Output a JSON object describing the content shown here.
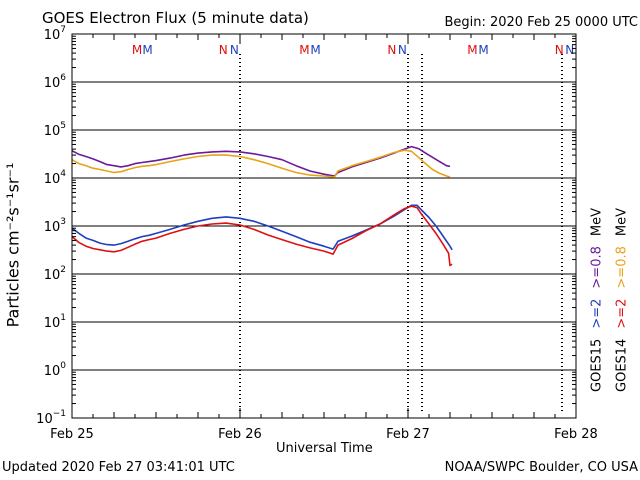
{
  "header": {
    "title": "GOES Electron Flux (5 minute data)",
    "begin": "Begin: 2020 Feb 25 0000 UTC"
  },
  "footer": {
    "updated": "Updated 2020 Feb 27 03:41:01 UTC",
    "credit": "NOAA/SWPC Boulder, CO USA"
  },
  "legend": {
    "goes15": {
      "name": "GOES15",
      "ge2": ">=2",
      "ge08": ">=0.8",
      "unit": "MeV"
    },
    "goes14": {
      "name": "GOES14",
      "ge2": ">=2",
      "ge08": ">=0.8",
      "unit": "MeV"
    }
  },
  "colors": {
    "goes15_ge2": "#1f3fbf",
    "goes15_ge08": "#6a1b9a",
    "goes14_ge2": "#e01010",
    "goes14_ge08": "#e8a317",
    "marker_m": "#e01010",
    "marker_n_red": "#e01010",
    "marker_n_blue": "#1f3fbf",
    "marker_m_blue": "#1f3fbf"
  },
  "chart_data": {
    "type": "line",
    "title": "GOES Electron Flux (5 minute data)",
    "xlabel": "Universal Time",
    "ylabel": "Particles cm⁻²s⁻¹sr⁻¹",
    "yscale": "log",
    "ylim": [
      0.1,
      10000000
    ],
    "xlim": [
      0,
      72
    ],
    "x_unit": "hours since 2020 Feb 25 0000 UTC",
    "x_tick_labels": [
      {
        "x": 0,
        "label": "Feb 25"
      },
      {
        "x": 24,
        "label": "Feb 26"
      },
      {
        "x": 48,
        "label": "Feb 27"
      },
      {
        "x": 72,
        "label": "Feb 28"
      }
    ],
    "y_tick_labels": [
      {
        "value": 10000000,
        "base": "10",
        "exp": "7"
      },
      {
        "value": 1000000,
        "base": "10",
        "exp": "6"
      },
      {
        "value": 100000,
        "base": "10",
        "exp": "5"
      },
      {
        "value": 10000,
        "base": "10",
        "exp": "4"
      },
      {
        "value": 1000,
        "base": "10",
        "exp": "3"
      },
      {
        "value": 100,
        "base": "10",
        "exp": "2"
      },
      {
        "value": 10,
        "base": "10",
        "exp": "1"
      },
      {
        "value": 1,
        "base": "10",
        "exp": "0"
      },
      {
        "value": 0.1,
        "base": "10",
        "exp": "−1"
      }
    ],
    "threshold": 1000,
    "midnight_markers": [
      24,
      48
    ],
    "top_markers": [
      {
        "x": 9.3,
        "text": "M",
        "color": "#e01010"
      },
      {
        "x": 10.8,
        "text": "M",
        "color": "#1f3fbf"
      },
      {
        "x": 21.6,
        "text": "N",
        "color": "#e01010"
      },
      {
        "x": 23.2,
        "text": "N",
        "color": "#1f3fbf"
      },
      {
        "x": 33.2,
        "text": "M",
        "color": "#e01010"
      },
      {
        "x": 34.8,
        "text": "M",
        "color": "#1f3fbf"
      },
      {
        "x": 45.7,
        "text": "N",
        "color": "#e01010"
      },
      {
        "x": 47.2,
        "text": "N",
        "color": "#1f3fbf"
      },
      {
        "x": 57.2,
        "text": "M",
        "color": "#e01010"
      },
      {
        "x": 58.8,
        "text": "M",
        "color": "#1f3fbf"
      },
      {
        "x": 69.6,
        "text": "N",
        "color": "#e01010"
      },
      {
        "x": 71.1,
        "text": "N",
        "color": "#1f3fbf"
      }
    ],
    "series": [
      {
        "color": "#6a1b9a",
        "points": [
          [
            0,
            37000
          ],
          [
            1,
            31000
          ],
          [
            2,
            28000
          ],
          [
            3,
            25000
          ],
          [
            4,
            22000
          ],
          [
            5,
            19000
          ],
          [
            6,
            18000
          ],
          [
            7,
            17000
          ],
          [
            8,
            18000
          ],
          [
            9,
            20000
          ],
          [
            10,
            21000
          ],
          [
            11,
            22000
          ],
          [
            12,
            23000
          ],
          [
            14,
            26000
          ],
          [
            16,
            30000
          ],
          [
            18,
            33000
          ],
          [
            20,
            35000
          ],
          [
            22,
            36000
          ],
          [
            24,
            35000
          ],
          [
            26,
            32000
          ],
          [
            28,
            28000
          ],
          [
            30,
            24000
          ],
          [
            32,
            18000
          ],
          [
            34,
            14000
          ],
          [
            36,
            12000
          ],
          [
            37.5,
            11000
          ],
          [
            38,
            13000
          ],
          [
            40,
            17000
          ],
          [
            42,
            21000
          ],
          [
            44,
            26000
          ],
          [
            46,
            33000
          ],
          [
            47.5,
            40000
          ],
          [
            48.5,
            45000
          ],
          [
            49.5,
            41000
          ],
          [
            50.5,
            33000
          ],
          [
            51.5,
            27000
          ],
          [
            52.5,
            22000
          ],
          [
            53.5,
            18000
          ],
          [
            54,
            17500
          ]
        ]
      },
      {
        "color": "#e8a317",
        "points": [
          [
            0,
            24000
          ],
          [
            1,
            20000
          ],
          [
            2,
            18000
          ],
          [
            3,
            16000
          ],
          [
            4,
            15000
          ],
          [
            5,
            14000
          ],
          [
            6,
            13000
          ],
          [
            7,
            13500
          ],
          [
            8,
            15000
          ],
          [
            9,
            16500
          ],
          [
            10,
            17500
          ],
          [
            11,
            18000
          ],
          [
            12,
            19000
          ],
          [
            14,
            22000
          ],
          [
            16,
            25000
          ],
          [
            18,
            28000
          ],
          [
            20,
            30000
          ],
          [
            22,
            30000
          ],
          [
            24,
            28000
          ],
          [
            26,
            24000
          ],
          [
            28,
            20000
          ],
          [
            30,
            16000
          ],
          [
            32,
            13000
          ],
          [
            34,
            11500
          ],
          [
            36,
            11000
          ],
          [
            37.5,
            10500
          ],
          [
            38,
            14000
          ],
          [
            40,
            18000
          ],
          [
            42,
            22000
          ],
          [
            44,
            27000
          ],
          [
            46,
            34000
          ],
          [
            47.5,
            38000
          ],
          [
            48.5,
            36000
          ],
          [
            49.5,
            27000
          ],
          [
            50.5,
            20000
          ],
          [
            51.5,
            15000
          ],
          [
            52.5,
            12500
          ],
          [
            53.5,
            11000
          ],
          [
            54,
            10500
          ]
        ]
      },
      {
        "color": "#1f3fbf",
        "points": [
          [
            0,
            900
          ],
          [
            1,
            700
          ],
          [
            2,
            560
          ],
          [
            3,
            500
          ],
          [
            4,
            440
          ],
          [
            5,
            410
          ],
          [
            6,
            400
          ],
          [
            7,
            430
          ],
          [
            8,
            480
          ],
          [
            9,
            540
          ],
          [
            10,
            600
          ],
          [
            11,
            640
          ],
          [
            12,
            700
          ],
          [
            14,
            850
          ],
          [
            16,
            1050
          ],
          [
            18,
            1250
          ],
          [
            20,
            1450
          ],
          [
            22,
            1550
          ],
          [
            24,
            1450
          ],
          [
            26,
            1250
          ],
          [
            28,
            1000
          ],
          [
            30,
            780
          ],
          [
            32,
            600
          ],
          [
            34,
            460
          ],
          [
            36,
            380
          ],
          [
            37.3,
            330
          ],
          [
            38,
            480
          ],
          [
            40,
            620
          ],
          [
            42,
            820
          ],
          [
            44,
            1100
          ],
          [
            46,
            1600
          ],
          [
            47.5,
            2200
          ],
          [
            48.5,
            2700
          ],
          [
            49.3,
            2700
          ],
          [
            50,
            2100
          ],
          [
            51,
            1500
          ],
          [
            52,
            1000
          ],
          [
            53,
            620
          ],
          [
            54,
            380
          ],
          [
            54.3,
            320
          ]
        ]
      },
      {
        "color": "#e01010",
        "points": [
          [
            0,
            600
          ],
          [
            1,
            450
          ],
          [
            2,
            380
          ],
          [
            3,
            340
          ],
          [
            4,
            320
          ],
          [
            5,
            300
          ],
          [
            6,
            290
          ],
          [
            7,
            310
          ],
          [
            8,
            360
          ],
          [
            9,
            420
          ],
          [
            10,
            480
          ],
          [
            11,
            520
          ],
          [
            12,
            560
          ],
          [
            14,
            700
          ],
          [
            16,
            850
          ],
          [
            18,
            1000
          ],
          [
            20,
            1100
          ],
          [
            22,
            1150
          ],
          [
            24,
            1050
          ],
          [
            26,
            850
          ],
          [
            28,
            650
          ],
          [
            30,
            520
          ],
          [
            32,
            420
          ],
          [
            34,
            350
          ],
          [
            36,
            300
          ],
          [
            37.3,
            260
          ],
          [
            38,
            400
          ],
          [
            40,
            550
          ],
          [
            42,
            800
          ],
          [
            44,
            1100
          ],
          [
            46,
            1700
          ],
          [
            47.5,
            2300
          ],
          [
            48.5,
            2600
          ],
          [
            49.3,
            2400
          ],
          [
            50,
            1700
          ],
          [
            51,
            1100
          ],
          [
            52,
            700
          ],
          [
            53,
            420
          ],
          [
            53.8,
            270
          ],
          [
            54,
            150
          ],
          [
            54.3,
            160
          ]
        ]
      }
    ]
  }
}
